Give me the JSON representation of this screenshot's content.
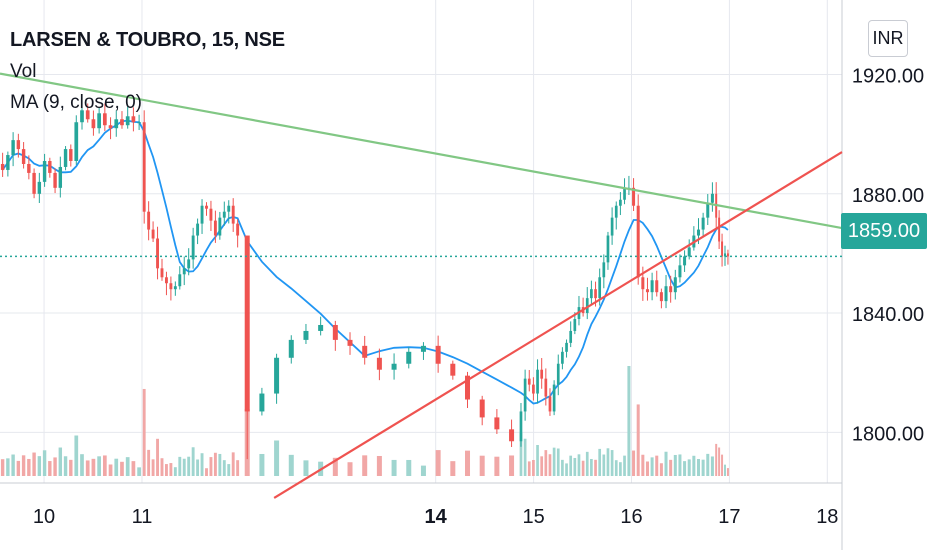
{
  "header": {
    "symbol_title": "LARSEN & TOUBRO, 15, NSE",
    "volume_label": "Vol",
    "ma_label": "MA (9, close, 0)"
  },
  "currency_button": "INR",
  "last_price_label": "1859.00",
  "colors": {
    "up": "#26a69a",
    "down": "#ef5350",
    "volume_up": "#9fd5cf",
    "volume_down": "#f1a7a6",
    "ma": "#2196f3",
    "resistance": "#81c784",
    "support": "#ef5350",
    "last_price_line": "#26a69a",
    "grid": "#e6e8ee",
    "text": "#131722"
  },
  "chart_data": {
    "type": "candlestick",
    "interval_minutes": 15,
    "y_axis": {
      "ticks": [
        1800,
        1840,
        1880,
        1920
      ],
      "tick_labels": [
        "1800.00",
        "1840.00",
        "1880.00",
        "1920.00"
      ],
      "range": [
        1783,
        1945
      ]
    },
    "x_axis": {
      "range": [
        9.55,
        18.15
      ],
      "ticks": [
        10,
        11,
        14,
        15,
        16,
        17,
        18
      ],
      "tick_labels": [
        "10",
        "11",
        "14",
        "15",
        "16",
        "17",
        "18"
      ],
      "bold_tick": "14"
    },
    "last_price": 1859.0,
    "moving_average": {
      "name": "MA (9, close, 0)",
      "period": 9
    },
    "trendlines": [
      {
        "name": "resistance",
        "from": [
          9.55,
          1920.3
        ],
        "to": [
          18.15,
          1868.5
        ]
      },
      {
        "name": "support",
        "from": [
          12.35,
          1778
        ],
        "to": [
          18.15,
          1894
        ]
      }
    ],
    "sessions": [
      {
        "start": 9.55,
        "end": 10.3,
        "closes": [
          1888,
          1893,
          1898,
          1895,
          1890,
          1887,
          1880,
          1884,
          1891,
          1887,
          1882,
          1889,
          1895,
          1891
        ]
      },
      {
        "start": 10.3,
        "end": 11.0,
        "closes": [
          1904,
          1908,
          1905,
          1902,
          1907,
          1903,
          1902,
          1905,
          1903,
          1906,
          1904,
          1904
        ]
      },
      {
        "start": 11.0,
        "end": 12.0,
        "closes": [
          1874,
          1868,
          1865,
          1855,
          1852,
          1850,
          1848,
          1849,
          1853,
          1855,
          1858,
          1866,
          1870,
          1876,
          1875,
          1871,
          1866,
          1872,
          1874,
          1876,
          1870,
          1866
        ]
      },
      {
        "start": 12.0,
        "end": 14.85,
        "closes": [
          1807,
          1813,
          1825,
          1831,
          1834,
          1836,
          1831,
          1829,
          1825,
          1821,
          1823,
          1827,
          1829,
          1823,
          1819,
          1811,
          1805,
          1801,
          1797
        ]
      },
      {
        "start": 14.85,
        "end": 15.95,
        "closes": [
          1807,
          1818,
          1816,
          1813,
          1821,
          1818,
          1812,
          1807,
          1816,
          1823,
          1827,
          1830,
          1834,
          1838,
          1842,
          1840,
          1845,
          1848,
          1845,
          1852,
          1857,
          1866,
          1872,
          1876,
          1878,
          1882
        ]
      },
      {
        "start": 15.95,
        "end": 16.85,
        "closes": [
          1882,
          1876,
          1852,
          1848,
          1847,
          1851,
          1847,
          1844,
          1849,
          1847,
          1852,
          1856,
          1859,
          1862,
          1866,
          1868,
          1872,
          1877,
          1880
        ]
      },
      {
        "start": 16.85,
        "end": 17.0,
        "closes": [
          1872,
          1864,
          1859,
          1860,
          1859
        ]
      }
    ]
  }
}
